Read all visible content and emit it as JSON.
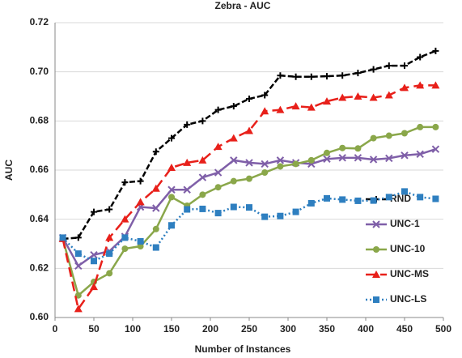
{
  "chart_data": {
    "type": "line",
    "title": "Zebra - AUC",
    "x_label": "Number of Instances",
    "y_label": "AUC",
    "x": [
      10,
      30,
      50,
      70,
      90,
      110,
      130,
      150,
      170,
      190,
      210,
      230,
      250,
      270,
      290,
      310,
      330,
      350,
      370,
      390,
      410,
      430,
      450,
      470,
      490
    ],
    "xlim": [
      0,
      500
    ],
    "xticks": [
      0,
      50,
      100,
      150,
      200,
      250,
      300,
      350,
      400,
      450,
      500
    ],
    "ylim": [
      0.6,
      0.72
    ],
    "yticks": [
      {
        "value": 0.6,
        "label": "0.60"
      },
      0.62,
      0.64,
      0.66,
      0.68,
      {
        "value": 0.7,
        "label": "0.70"
      },
      0.72
    ],
    "grid": true,
    "legend": "lower right",
    "series": [
      {
        "name": "RND",
        "color": "#000000",
        "marker": "plus",
        "line_style": "dashed",
        "values": [
          0.632,
          0.6325,
          0.643,
          0.644,
          0.655,
          0.6555,
          0.6675,
          0.673,
          0.6785,
          0.68,
          0.6845,
          0.686,
          0.689,
          0.6905,
          0.6985,
          0.698,
          0.698,
          0.6982,
          0.6985,
          0.6995,
          0.701,
          0.7025,
          0.7025,
          0.706,
          0.7085
        ]
      },
      {
        "name": "UNC-1",
        "color": "#7f5fa8",
        "marker": "x",
        "line_style": "solid",
        "values": [
          0.6325,
          0.621,
          0.6255,
          0.627,
          0.633,
          0.645,
          0.6445,
          0.652,
          0.652,
          0.657,
          0.659,
          0.664,
          0.663,
          0.6625,
          0.664,
          0.663,
          0.6625,
          0.6645,
          0.665,
          0.665,
          0.6643,
          0.6648,
          0.666,
          0.6665,
          0.6685
        ]
      },
      {
        "name": "UNC-10",
        "color": "#8aa74a",
        "marker": "circle",
        "line_style": "solid",
        "values": [
          0.632,
          0.609,
          0.6145,
          0.618,
          0.628,
          0.629,
          0.636,
          0.649,
          0.6455,
          0.65,
          0.653,
          0.6555,
          0.6565,
          0.659,
          0.6615,
          0.6625,
          0.664,
          0.667,
          0.669,
          0.6688,
          0.673,
          0.674,
          0.675,
          0.6775,
          0.6775
        ]
      },
      {
        "name": "UNC-MS",
        "color": "#e8201a",
        "marker": "triangle",
        "line_style": "longdash",
        "values": [
          0.632,
          0.6035,
          0.6125,
          0.6325,
          0.64,
          0.647,
          0.6525,
          0.661,
          0.663,
          0.664,
          0.6695,
          0.673,
          0.676,
          0.684,
          0.6845,
          0.686,
          0.6855,
          0.688,
          0.6895,
          0.69,
          0.6895,
          0.6905,
          0.6935,
          0.6945,
          0.6945
        ]
      },
      {
        "name": "UNC-LS",
        "color": "#2e7fc0",
        "marker": "square",
        "line_style": "dotted",
        "values": [
          0.6325,
          0.626,
          0.623,
          0.626,
          0.6325,
          0.631,
          0.6285,
          0.6375,
          0.644,
          0.6442,
          0.6425,
          0.645,
          0.6448,
          0.641,
          0.6413,
          0.643,
          0.6465,
          0.6485,
          0.648,
          0.6475,
          0.6476,
          0.649,
          0.6513,
          0.649,
          0.6483
        ]
      }
    ]
  }
}
